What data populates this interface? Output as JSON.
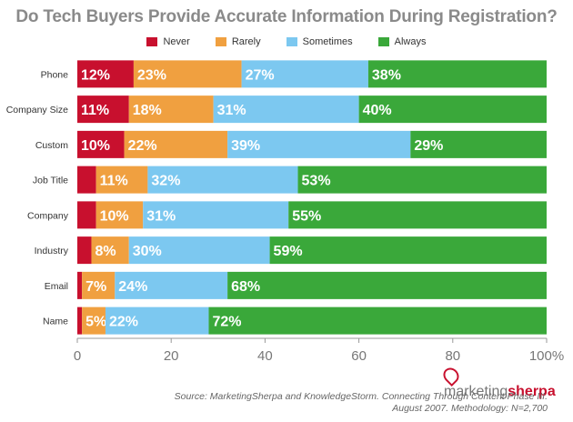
{
  "chart_data": {
    "type": "bar",
    "orientation": "horizontal",
    "stacked": true,
    "title": "Do Tech Buyers Provide Accurate Information During Registration?",
    "categories": [
      "Phone",
      "Company Size",
      "Custom",
      "Job Title",
      "Company",
      "Industry",
      "Email",
      "Name"
    ],
    "series": [
      {
        "name": "Never",
        "color": "#c8102e",
        "values": [
          12,
          11,
          10,
          4,
          4,
          3,
          1,
          1
        ]
      },
      {
        "name": "Rarely",
        "color": "#f0a040",
        "values": [
          23,
          18,
          22,
          11,
          10,
          8,
          7,
          5
        ]
      },
      {
        "name": "Sometimes",
        "color": "#7cc8f0",
        "values": [
          27,
          31,
          39,
          32,
          31,
          30,
          24,
          22
        ]
      },
      {
        "name": "Always",
        "color": "#3aa83a",
        "values": [
          38,
          40,
          29,
          53,
          55,
          59,
          68,
          72
        ]
      }
    ],
    "data_labels": [
      [
        "12%",
        "23%",
        "27%",
        "38%"
      ],
      [
        "11%",
        "18%",
        "31%",
        "40%"
      ],
      [
        "10%",
        "22%",
        "39%",
        "29%"
      ],
      [
        "",
        "11%",
        "32%",
        "53%"
      ],
      [
        "",
        "10%",
        "31%",
        "55%"
      ],
      [
        "",
        "8%",
        "30%",
        "59%"
      ],
      [
        "",
        "7%",
        "24%",
        "68%"
      ],
      [
        "",
        "5%",
        "22%",
        "72%"
      ]
    ],
    "xlim": [
      0,
      100
    ],
    "xticks": [
      "0",
      "20",
      "40",
      "60",
      "80",
      "100%"
    ],
    "legend_position": "top-center",
    "grid": false
  },
  "branding": {
    "prefix": "marketing",
    "suffix": "sherpa"
  },
  "source_lines": [
    "Source: MarketingSherpa and KnowledgeStorm. Connecting Through Content Phase III.",
    "August 2007. Methodology: N=2,700"
  ]
}
